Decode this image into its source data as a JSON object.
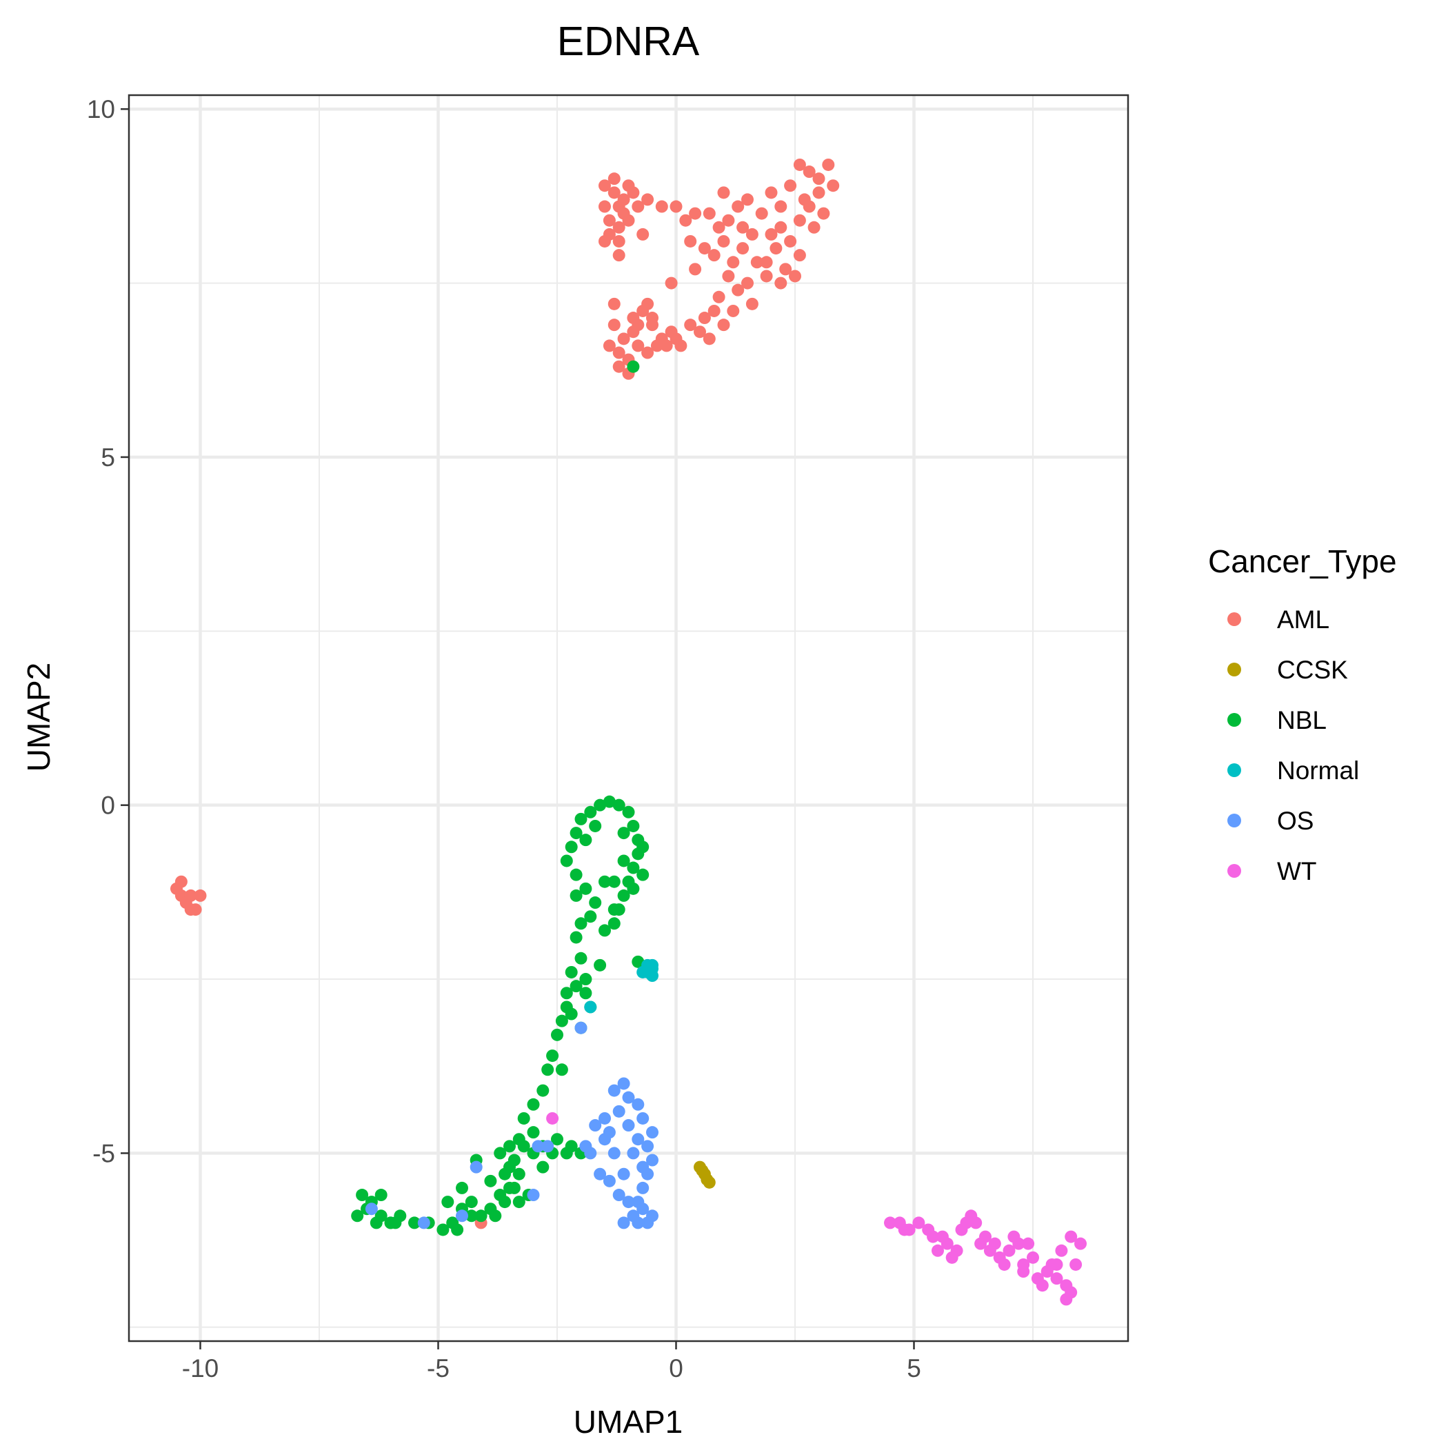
{
  "chart_data": {
    "type": "scatter",
    "title": "EDNRA",
    "xlabel": "UMAP1",
    "ylabel": "UMAP2",
    "xlim": [
      -11.5,
      9.5
    ],
    "ylim": [
      -7.7,
      10.2
    ],
    "x_ticks": [
      -10,
      -5,
      0,
      5
    ],
    "y_ticks": [
      -5,
      0,
      5,
      10
    ],
    "x_tick_labels": [
      "-10",
      "-5",
      "0",
      "5"
    ],
    "y_tick_labels": [
      "-5",
      "0",
      "5",
      "10"
    ],
    "grid": true,
    "legend": {
      "title": "Cancer_Type",
      "placement": "right"
    },
    "series": [
      {
        "name": "AML",
        "color": "#F8766D",
        "points": [
          [
            -1.5,
            8.9
          ],
          [
            -1.3,
            8.8
          ],
          [
            -1.2,
            8.6
          ],
          [
            -1.4,
            8.4
          ],
          [
            -1.1,
            8.7
          ],
          [
            -1.0,
            8.9
          ],
          [
            -1.3,
            9.0
          ],
          [
            -1.5,
            8.6
          ],
          [
            -1.2,
            8.3
          ],
          [
            -0.9,
            8.8
          ],
          [
            -1.4,
            8.2
          ],
          [
            -1.1,
            8.5
          ],
          [
            -0.8,
            8.6
          ],
          [
            -1.2,
            8.1
          ],
          [
            -1.0,
            8.4
          ],
          [
            -1.5,
            8.1
          ],
          [
            -0.7,
            8.2
          ],
          [
            -1.2,
            7.9
          ],
          [
            -0.6,
            8.7
          ],
          [
            -0.3,
            8.6
          ],
          [
            0.0,
            8.6
          ],
          [
            0.2,
            8.4
          ],
          [
            0.4,
            8.5
          ],
          [
            0.7,
            8.5
          ],
          [
            0.9,
            8.3
          ],
          [
            1.1,
            8.4
          ],
          [
            1.3,
            8.6
          ],
          [
            1.5,
            8.7
          ],
          [
            1.4,
            8.3
          ],
          [
            0.3,
            8.1
          ],
          [
            0.6,
            8.0
          ],
          [
            0.8,
            7.9
          ],
          [
            0.4,
            7.7
          ],
          [
            1.0,
            8.1
          ],
          [
            1.2,
            7.8
          ],
          [
            1.6,
            8.2
          ],
          [
            1.8,
            8.5
          ],
          [
            2.0,
            8.8
          ],
          [
            2.2,
            8.6
          ],
          [
            2.4,
            8.9
          ],
          [
            2.6,
            9.2
          ],
          [
            2.8,
            9.1
          ],
          [
            3.0,
            9.0
          ],
          [
            3.2,
            9.2
          ],
          [
            3.0,
            8.8
          ],
          [
            2.8,
            8.6
          ],
          [
            3.1,
            8.5
          ],
          [
            2.9,
            8.3
          ],
          [
            2.6,
            8.4
          ],
          [
            2.4,
            8.1
          ],
          [
            2.2,
            8.3
          ],
          [
            2.1,
            8.0
          ],
          [
            1.9,
            7.8
          ],
          [
            2.3,
            7.7
          ],
          [
            2.6,
            7.9
          ],
          [
            2.5,
            7.6
          ],
          [
            2.2,
            7.5
          ],
          [
            1.9,
            7.6
          ],
          [
            1.7,
            7.8
          ],
          [
            1.5,
            7.5
          ],
          [
            1.3,
            7.4
          ],
          [
            1.1,
            7.6
          ],
          [
            0.9,
            7.3
          ],
          [
            1.2,
            7.1
          ],
          [
            1.0,
            6.9
          ],
          [
            0.8,
            7.1
          ],
          [
            0.6,
            7.0
          ],
          [
            0.5,
            6.8
          ],
          [
            0.3,
            6.9
          ],
          [
            0.1,
            6.6
          ],
          [
            -0.1,
            6.8
          ],
          [
            -0.3,
            6.7
          ],
          [
            -0.5,
            6.9
          ],
          [
            -0.7,
            7.1
          ],
          [
            -0.9,
            6.8
          ],
          [
            -1.1,
            6.7
          ],
          [
            -1.3,
            6.9
          ],
          [
            -1.2,
            6.5
          ],
          [
            -1.0,
            6.4
          ],
          [
            -0.8,
            6.6
          ],
          [
            -0.6,
            6.5
          ],
          [
            -1.4,
            6.6
          ],
          [
            -1.2,
            6.3
          ],
          [
            -0.9,
            7.0
          ],
          [
            -0.6,
            7.2
          ],
          [
            -0.4,
            6.6
          ],
          [
            -0.2,
            6.6
          ],
          [
            0.0,
            6.7
          ],
          [
            -1.0,
            6.2
          ],
          [
            -0.8,
            6.9
          ],
          [
            -0.1,
            7.5
          ],
          [
            1.4,
            8.0
          ],
          [
            2.0,
            8.2
          ],
          [
            2.7,
            8.7
          ],
          [
            3.3,
            8.9
          ],
          [
            1.6,
            7.2
          ],
          [
            0.7,
            6.7
          ],
          [
            -1.3,
            7.2
          ],
          [
            -0.5,
            7.0
          ],
          [
            1.0,
            8.8
          ],
          [
            -10.5,
            -1.2
          ],
          [
            -10.4,
            -1.3
          ],
          [
            -10.3,
            -1.4
          ],
          [
            -10.2,
            -1.3
          ],
          [
            -10.1,
            -1.5
          ],
          [
            -10.0,
            -1.3
          ],
          [
            -10.2,
            -1.5
          ],
          [
            -10.4,
            -1.1
          ],
          [
            -4.1,
            -6.0
          ]
        ]
      },
      {
        "name": "CCSK",
        "color": "#B79F00",
        "points": [
          [
            0.5,
            -5.2
          ],
          [
            0.55,
            -5.25
          ],
          [
            0.6,
            -5.3
          ],
          [
            0.65,
            -5.38
          ],
          [
            0.7,
            -5.42
          ]
        ]
      },
      {
        "name": "NBL",
        "color": "#00BA38",
        "points": [
          [
            -1.6,
            0.0
          ],
          [
            -1.4,
            0.05
          ],
          [
            -1.2,
            0.0
          ],
          [
            -1.0,
            -0.1
          ],
          [
            -0.9,
            -0.3
          ],
          [
            -0.8,
            -0.5
          ],
          [
            -0.8,
            -0.7
          ],
          [
            -0.9,
            -0.9
          ],
          [
            -1.0,
            -1.1
          ],
          [
            -1.1,
            -1.3
          ],
          [
            -1.2,
            -1.5
          ],
          [
            -1.3,
            -1.7
          ],
          [
            -1.8,
            -0.1
          ],
          [
            -2.0,
            -0.2
          ],
          [
            -2.1,
            -0.4
          ],
          [
            -2.2,
            -0.6
          ],
          [
            -2.3,
            -0.8
          ],
          [
            -2.1,
            -1.0
          ],
          [
            -1.9,
            -1.2
          ],
          [
            -1.7,
            -1.4
          ],
          [
            -1.8,
            -1.6
          ],
          [
            -2.0,
            -1.7
          ],
          [
            -2.1,
            -1.9
          ],
          [
            -2.0,
            -2.2
          ],
          [
            -2.2,
            -2.4
          ],
          [
            -2.1,
            -2.6
          ],
          [
            -1.9,
            -2.5
          ],
          [
            -2.3,
            -2.7
          ],
          [
            -2.2,
            -3.0
          ],
          [
            -1.8,
            -2.9
          ],
          [
            -2.4,
            -3.1
          ],
          [
            -2.5,
            -3.3
          ],
          [
            -2.6,
            -3.6
          ],
          [
            -2.7,
            -3.8
          ],
          [
            -2.4,
            -3.8
          ],
          [
            -2.8,
            -4.1
          ],
          [
            -3.0,
            -4.3
          ],
          [
            -3.2,
            -4.5
          ],
          [
            -3.0,
            -4.7
          ],
          [
            -3.2,
            -4.9
          ],
          [
            -3.4,
            -5.1
          ],
          [
            -3.6,
            -5.3
          ],
          [
            -3.4,
            -5.5
          ],
          [
            -3.6,
            -5.7
          ],
          [
            -3.8,
            -5.9
          ],
          [
            -4.1,
            -5.9
          ],
          [
            -4.3,
            -5.7
          ],
          [
            -4.5,
            -5.8
          ],
          [
            -4.7,
            -6.0
          ],
          [
            -4.9,
            -6.1
          ],
          [
            -5.2,
            -6.0
          ],
          [
            -5.5,
            -6.0
          ],
          [
            -5.8,
            -5.9
          ],
          [
            -6.0,
            -6.0
          ],
          [
            -6.2,
            -5.9
          ],
          [
            -6.4,
            -5.7
          ],
          [
            -6.6,
            -5.6
          ],
          [
            -6.7,
            -5.9
          ],
          [
            -6.5,
            -5.8
          ],
          [
            -6.3,
            -6.0
          ],
          [
            -3.0,
            -5.0
          ],
          [
            -2.8,
            -4.9
          ],
          [
            -3.3,
            -4.8
          ],
          [
            -3.5,
            -4.9
          ],
          [
            -3.7,
            -5.0
          ],
          [
            -3.5,
            -5.2
          ],
          [
            -3.3,
            -5.3
          ],
          [
            -3.1,
            -5.6
          ],
          [
            -3.3,
            -5.7
          ],
          [
            -3.5,
            -5.5
          ],
          [
            -2.5,
            -4.8
          ],
          [
            -2.2,
            -4.9
          ],
          [
            -2.0,
            -5.0
          ],
          [
            -2.3,
            -5.0
          ],
          [
            -2.6,
            -5.0
          ],
          [
            -2.8,
            -5.2
          ],
          [
            -1.6,
            -2.3
          ],
          [
            -0.8,
            -2.25
          ],
          [
            -1.3,
            -1.1
          ],
          [
            -1.1,
            -0.8
          ],
          [
            -0.7,
            -1.0
          ],
          [
            -0.7,
            -0.6
          ],
          [
            -0.9,
            -1.2
          ],
          [
            -1.3,
            -1.5
          ],
          [
            -1.5,
            -1.8
          ],
          [
            -2.3,
            -2.9
          ],
          [
            -2.0,
            -3.2
          ],
          [
            -1.9,
            -2.7
          ],
          [
            -2.1,
            -1.3
          ],
          [
            -1.5,
            -1.1
          ],
          [
            -1.7,
            -0.3
          ],
          [
            -1.9,
            -0.5
          ],
          [
            -1.1,
            -0.4
          ],
          [
            -4.6,
            -6.1
          ],
          [
            -4.3,
            -5.9
          ],
          [
            -4.8,
            -5.7
          ],
          [
            -4.5,
            -5.5
          ],
          [
            -6.0,
            -6.0
          ],
          [
            -5.9,
            -6.0
          ],
          [
            -6.2,
            -5.6
          ],
          [
            -3.9,
            -5.4
          ],
          [
            -4.2,
            -5.1
          ],
          [
            -3.7,
            -5.6
          ],
          [
            -3.9,
            -5.8
          ],
          [
            -0.9,
            6.3
          ]
        ]
      },
      {
        "name": "Normal",
        "color": "#00BFC4",
        "points": [
          [
            -0.6,
            -2.4
          ],
          [
            -0.5,
            -2.35
          ],
          [
            -0.6,
            -2.3
          ],
          [
            -0.5,
            -2.45
          ],
          [
            -0.7,
            -2.4
          ],
          [
            -0.5,
            -2.3
          ],
          [
            -1.8,
            -2.9
          ]
        ]
      },
      {
        "name": "OS",
        "color": "#619CFF",
        "points": [
          [
            -1.3,
            -4.1
          ],
          [
            -1.1,
            -4.0
          ],
          [
            -1.0,
            -4.2
          ],
          [
            -0.8,
            -4.3
          ],
          [
            -0.7,
            -4.5
          ],
          [
            -0.5,
            -4.7
          ],
          [
            -0.6,
            -4.9
          ],
          [
            -0.5,
            -5.1
          ],
          [
            -0.6,
            -5.3
          ],
          [
            -0.7,
            -5.5
          ],
          [
            -0.8,
            -5.7
          ],
          [
            -0.9,
            -5.9
          ],
          [
            -1.1,
            -6.0
          ],
          [
            -0.6,
            -6.0
          ],
          [
            -0.8,
            -6.0
          ],
          [
            -1.2,
            -5.6
          ],
          [
            -1.4,
            -5.4
          ],
          [
            -1.6,
            -5.3
          ],
          [
            -1.3,
            -5.0
          ],
          [
            -1.5,
            -4.8
          ],
          [
            -1.7,
            -4.6
          ],
          [
            -1.5,
            -4.5
          ],
          [
            -1.2,
            -4.4
          ],
          [
            -1.0,
            -4.6
          ],
          [
            -0.8,
            -4.8
          ],
          [
            -0.9,
            -5.0
          ],
          [
            -0.7,
            -5.2
          ],
          [
            -1.1,
            -5.3
          ],
          [
            -1.0,
            -5.7
          ],
          [
            -0.7,
            -5.8
          ],
          [
            -0.5,
            -5.9
          ],
          [
            -1.4,
            -4.7
          ],
          [
            -2.0,
            -3.2
          ],
          [
            -3.0,
            -5.6
          ],
          [
            -4.2,
            -5.2
          ],
          [
            -4.5,
            -5.9
          ],
          [
            -5.3,
            -6.0
          ],
          [
            -6.4,
            -5.8
          ],
          [
            -2.7,
            -4.9
          ],
          [
            -2.9,
            -4.9
          ],
          [
            -1.9,
            -4.9
          ],
          [
            -1.8,
            -5.0
          ]
        ]
      },
      {
        "name": "WT",
        "color": "#F564E3",
        "points": [
          [
            4.5,
            -6.0
          ],
          [
            4.7,
            -6.0
          ],
          [
            4.9,
            -6.1
          ],
          [
            5.1,
            -6.0
          ],
          [
            5.3,
            -6.1
          ],
          [
            5.4,
            -6.2
          ],
          [
            5.5,
            -6.4
          ],
          [
            5.7,
            -6.3
          ],
          [
            5.9,
            -6.4
          ],
          [
            6.0,
            -6.1
          ],
          [
            6.2,
            -5.9
          ],
          [
            6.3,
            -6.0
          ],
          [
            6.5,
            -6.2
          ],
          [
            6.6,
            -6.4
          ],
          [
            6.8,
            -6.5
          ],
          [
            7.0,
            -6.4
          ],
          [
            7.2,
            -6.3
          ],
          [
            7.3,
            -6.6
          ],
          [
            7.5,
            -6.5
          ],
          [
            7.6,
            -6.8
          ],
          [
            7.8,
            -6.7
          ],
          [
            8.0,
            -6.8
          ],
          [
            8.2,
            -6.9
          ],
          [
            8.3,
            -7.0
          ],
          [
            8.4,
            -6.6
          ],
          [
            8.5,
            -6.3
          ],
          [
            8.3,
            -6.2
          ],
          [
            8.1,
            -6.4
          ],
          [
            7.9,
            -6.6
          ],
          [
            7.7,
            -6.9
          ],
          [
            7.4,
            -6.3
          ],
          [
            7.1,
            -6.2
          ],
          [
            6.9,
            -6.6
          ],
          [
            6.7,
            -6.3
          ],
          [
            6.4,
            -6.3
          ],
          [
            5.6,
            -6.2
          ],
          [
            5.8,
            -6.5
          ],
          [
            4.8,
            -6.1
          ],
          [
            6.1,
            -6.0
          ],
          [
            7.3,
            -6.7
          ],
          [
            8.2,
            -7.1
          ],
          [
            8.0,
            -6.6
          ],
          [
            -2.6,
            -4.5
          ]
        ]
      }
    ]
  }
}
